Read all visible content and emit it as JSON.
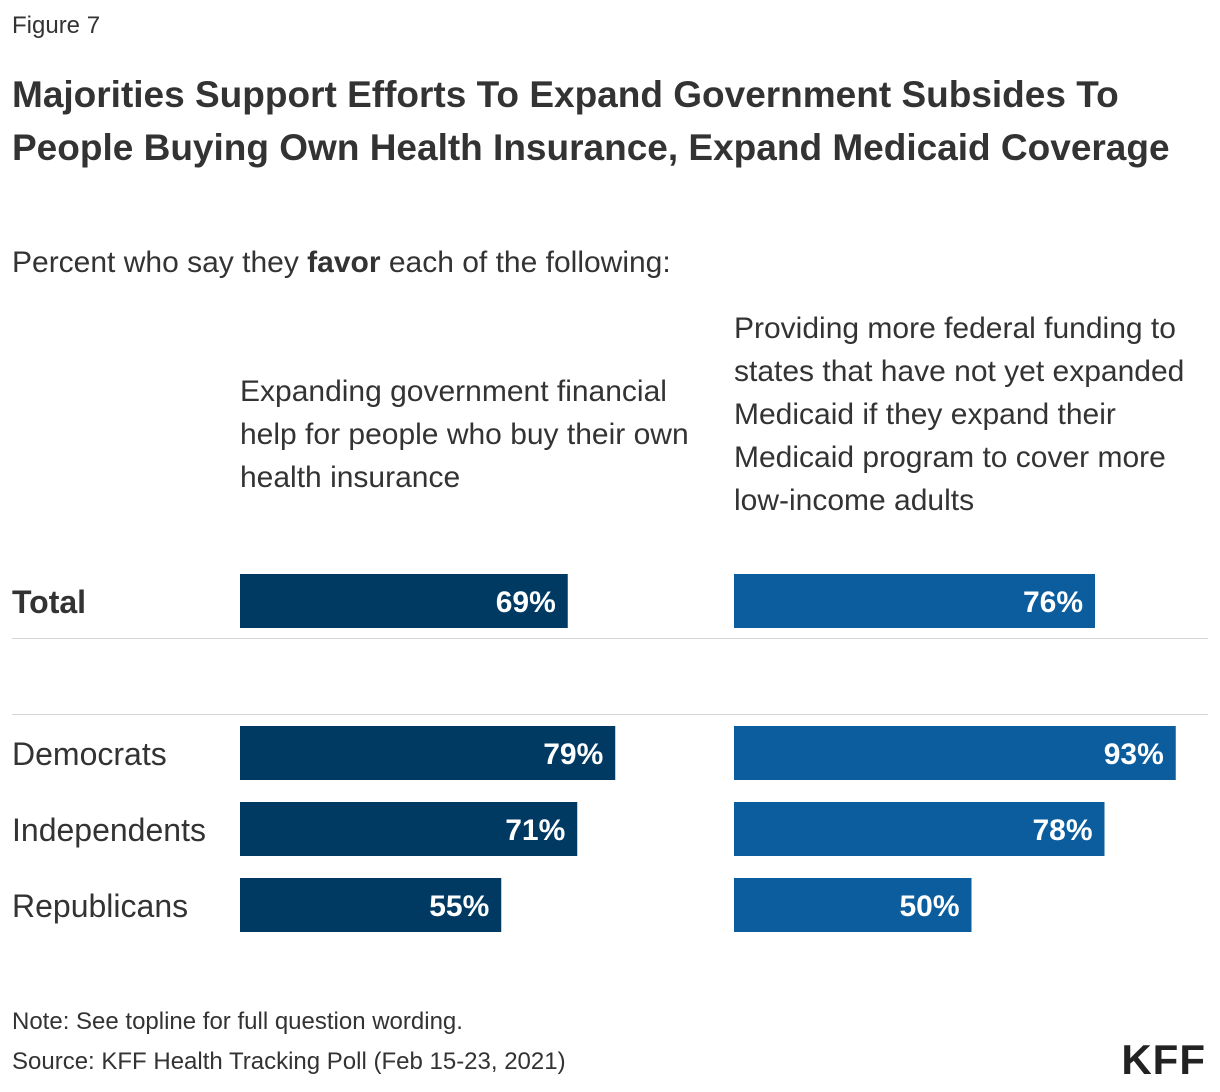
{
  "figure_label": "Figure 7",
  "title": "Majorities Support Efforts To Expand Government Subsides To People Buying Own Health Insurance, Expand Medicaid Coverage",
  "subtitle": {
    "prefix": "Percent who say they ",
    "emphasis": "favor",
    "suffix": " each of the following:"
  },
  "colors": {
    "series1": "#003a63",
    "series2": "#0b5d9e"
  },
  "chart_data": {
    "type": "bar",
    "orientation": "horizontal",
    "categories": [
      "Total",
      "Democrats",
      "Independents",
      "Republicans"
    ],
    "series": [
      {
        "name": "Expanding government financial help for people who buy their own health insurance",
        "values": [
          69,
          79,
          71,
          55
        ]
      },
      {
        "name": "Providing more federal funding to states that have not yet expanded Medicaid if they expand their Medicaid program to cover more low-income adults",
        "values": [
          76,
          93,
          78,
          50
        ]
      }
    ],
    "value_suffix": "%",
    "xlim": [
      0,
      100
    ]
  },
  "footer": {
    "note": "Note: See topline for full question wording.",
    "source": "Source: KFF Health Tracking Poll (Feb 15-23, 2021)",
    "logo": "KFF"
  }
}
